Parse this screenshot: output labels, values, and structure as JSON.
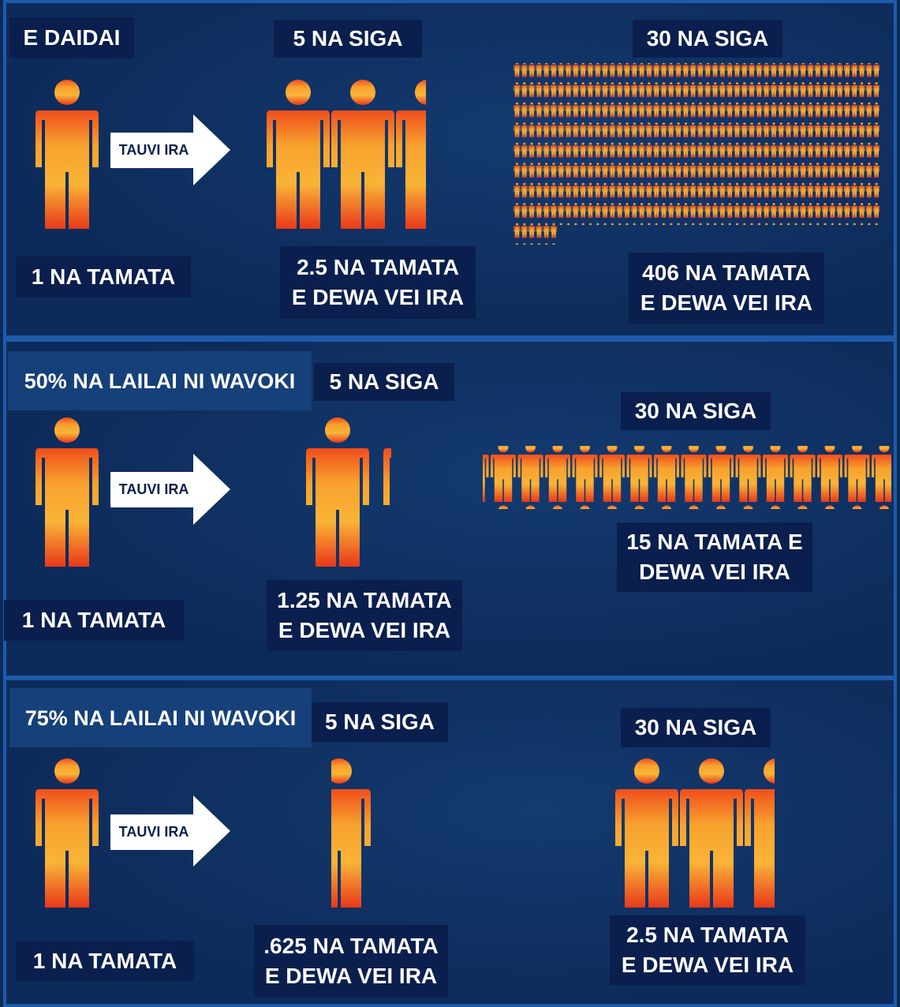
{
  "panels": [
    {
      "heading": "E DAIDAI",
      "arrow": "TAUVI IRA",
      "start": "1 NA TAMATA",
      "mid_heading": "5 NA SIGA",
      "mid_result": [
        "2.5 NA TAMATA",
        "E DEWA VEI IRA"
      ],
      "end_heading": "30 NA SIGA",
      "end_result": [
        "406 NA TAMATA",
        "E DEWA VEI IRA"
      ]
    },
    {
      "heading": "50% NA LAILAI NI WAVOKI",
      "arrow": "TAUVI IRA",
      "start": "1 NA TAMATA",
      "mid_heading": "5 NA SIGA",
      "mid_result": [
        "1.25 NA TAMATA",
        "E DEWA VEI IRA"
      ],
      "end_heading": "30 NA SIGA",
      "end_result": [
        "15 NA TAMATA E",
        "DEWA VEI IRA"
      ]
    },
    {
      "heading": "75% NA LAILAI NI WAVOKI",
      "arrow": "TAUVI IRA",
      "start": "1 NA TAMATA",
      "mid_heading": "5 NA SIGA",
      "mid_result": [
        ".625 NA TAMATA",
        "E DEWA VEI IRA"
      ],
      "end_heading": "30 NA SIGA",
      "end_result": [
        "2.5 NA TAMATA",
        "E DEWA VEI IRA"
      ]
    }
  ]
}
